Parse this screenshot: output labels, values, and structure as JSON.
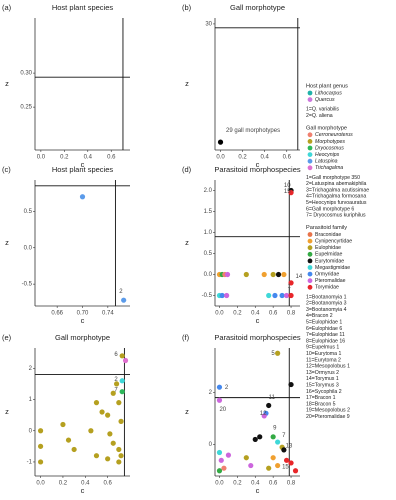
{
  "chart_data": [
    {
      "type": "scatter",
      "panel": "(a)",
      "title": "Host plant species",
      "x_label": "c",
      "y_label": "z",
      "xlim": [
        -0.05,
        0.76
      ],
      "ylim": [
        0.187,
        0.381
      ],
      "xticks": [
        {
          "value": 0,
          "label": "0.0"
        },
        {
          "value": 0.2,
          "label": "0.2"
        },
        {
          "value": 0.4,
          "label": "0.4"
        },
        {
          "value": 0.6,
          "label": "0.6"
        }
      ],
      "yticks": [
        {
          "value": 0.25,
          "label": "0.25"
        },
        {
          "value": 0.3,
          "label": "0.30"
        }
      ],
      "vline": 0.7,
      "hline": 0.294,
      "points": [],
      "point_labels": []
    },
    {
      "type": "scatter",
      "panel": "(b)",
      "title": "Gall morphotype",
      "x_label": "c",
      "y_label": "z",
      "xlim": [
        -0.05,
        0.72
      ],
      "ylim": [
        -2,
        31.5
      ],
      "xticks": [
        {
          "value": 0,
          "label": "0.0"
        },
        {
          "value": 0.2,
          "label": "0.2"
        },
        {
          "value": 0.4,
          "label": "0.4"
        },
        {
          "value": 0.6,
          "label": "0.6"
        }
      ],
      "yticks": [
        30
      ],
      "vline": 0.7,
      "hline": 29,
      "points": [
        {
          "x": 0,
          "y": 0,
          "color": "#000000"
        }
      ],
      "point_labels": [
        {
          "x": 0.05,
          "y": 3,
          "text": "29 gall morphotypes"
        }
      ]
    },
    {
      "type": "scatter",
      "panel": "(c)",
      "title": "Host plant species",
      "x_label": "c",
      "y_label": "z",
      "xlim": [
        0.625,
        0.775
      ],
      "ylim": [
        -0.8,
        0.93
      ],
      "xticks": [
        0.66,
        {
          "value": 0.7,
          "label": "0.70"
        },
        0.74
      ],
      "yticks": [
        -0.5,
        {
          "value": 0,
          "label": "0.0"
        },
        0.5
      ],
      "vline": 0.752,
      "hline": 0.85,
      "points": [
        {
          "x": 0.7,
          "y": 0.7,
          "color": "#5B9BEA"
        },
        {
          "x": 0.765,
          "y": -0.72,
          "color": "#5B9BEA"
        }
      ],
      "point_labels": [
        {
          "x": 0.758,
          "y": -0.6,
          "text": "2"
        }
      ]
    },
    {
      "type": "scatter",
      "panel": "(d)",
      "title": "Parasitoid morphospecies",
      "x_label": "c",
      "y_label": "z",
      "xlim": [
        -0.05,
        0.9
      ],
      "ylim": [
        -0.75,
        2.25
      ],
      "xticks": [
        {
          "value": 0,
          "label": "0.0"
        },
        0.2,
        0.4,
        0.6,
        0.8
      ],
      "yticks": [
        -0.5,
        {
          "value": 0,
          "label": "0.0"
        },
        0.5,
        {
          "value": 1,
          "label": "1.0"
        },
        1.5,
        {
          "value": 2,
          "label": "2.0"
        }
      ],
      "vline": 0.78,
      "hline": 0.9,
      "points": [
        {
          "x": 0.8,
          "y": 2.0,
          "color": "#111111"
        },
        {
          "x": 0.8,
          "y": 1.95,
          "color": "#E8262A"
        },
        {
          "x": 0,
          "y": 0,
          "color": "#F0A030"
        },
        {
          "x": 0.03,
          "y": 0,
          "color": "#33AA44"
        },
        {
          "x": 0.06,
          "y": 0,
          "color": "#F08070"
        },
        {
          "x": 0.09,
          "y": 0,
          "color": "#CC66DD"
        },
        {
          "x": 0.3,
          "y": 0,
          "color": "#B5A020"
        },
        {
          "x": 0.5,
          "y": 0,
          "color": "#F0A030"
        },
        {
          "x": 0.6,
          "y": 0,
          "color": "#B5A020"
        },
        {
          "x": 0.66,
          "y": 0,
          "color": "#111111"
        },
        {
          "x": 0.72,
          "y": 0,
          "color": "#F0A030"
        },
        {
          "x": 0.8,
          "y": -0.2,
          "color": "#E8262A"
        },
        {
          "x": 0,
          "y": -0.5,
          "color": "#3FD8D8"
        },
        {
          "x": 0.03,
          "y": -0.5,
          "color": "#4488EE"
        },
        {
          "x": 0.08,
          "y": -0.5,
          "color": "#CC66DD"
        },
        {
          "x": 0.55,
          "y": -0.5,
          "color": "#3FD8D8"
        },
        {
          "x": 0.62,
          "y": -0.5,
          "color": "#4488EE"
        },
        {
          "x": 0.7,
          "y": -0.5,
          "color": "#4488EE"
        },
        {
          "x": 0.75,
          "y": -0.5,
          "color": "#CC66DD"
        },
        {
          "x": 0.8,
          "y": -0.5,
          "color": "#E8262A"
        }
      ],
      "point_labels": [
        {
          "x": 0.72,
          "y": 2.12,
          "text": "10"
        },
        {
          "x": 0.72,
          "y": 1.98,
          "text": "15"
        },
        {
          "x": 0.85,
          "y": -0.05,
          "text": "14"
        },
        {
          "x": 0.76,
          "y": -0.28,
          "text": "1"
        }
      ]
    },
    {
      "type": "scatter",
      "panel": "(e)",
      "title": "Gall morphotype",
      "x_label": "c",
      "y_label": "z",
      "xlim": [
        -0.05,
        0.8
      ],
      "ylim": [
        -1.45,
        2.65
      ],
      "xticks": [
        {
          "value": 0,
          "label": "0.0"
        },
        {
          "value": 0.2,
          "label": "0.2"
        },
        {
          "value": 0.4,
          "label": "0.4"
        },
        {
          "value": 0.6,
          "label": "0.6"
        }
      ],
      "yticks": [
        -1,
        0,
        1,
        2
      ],
      "vline": 0.75,
      "hline": 1.8,
      "points": [
        {
          "x": 0,
          "y": 0,
          "color": "#B5A020"
        },
        {
          "x": 0,
          "y": -0.5,
          "color": "#B5A020"
        },
        {
          "x": 0,
          "y": -1,
          "color": "#B5A020"
        },
        {
          "x": 0.5,
          "y": 0.9,
          "color": "#B5A020"
        },
        {
          "x": 0.55,
          "y": 0.6,
          "color": "#B5A020"
        },
        {
          "x": 0.6,
          "y": 0.5,
          "color": "#B5A020"
        },
        {
          "x": 0.62,
          "y": -0.1,
          "color": "#B5A020"
        },
        {
          "x": 0.65,
          "y": -0.4,
          "color": "#B5A020"
        },
        {
          "x": 0.7,
          "y": -0.6,
          "color": "#B5A020"
        },
        {
          "x": 0.6,
          "y": -0.9,
          "color": "#B5A020"
        },
        {
          "x": 0.7,
          "y": -1,
          "color": "#B5A020"
        },
        {
          "x": 0.72,
          "y": -0.8,
          "color": "#B5A020"
        },
        {
          "x": 0.25,
          "y": -0.3,
          "color": "#B5A020"
        },
        {
          "x": 0.3,
          "y": -0.6,
          "color": "#B5A020"
        },
        {
          "x": 0.2,
          "y": 0.2,
          "color": "#B5A020"
        },
        {
          "x": 0.65,
          "y": 1.2,
          "color": "#B5A020"
        },
        {
          "x": 0.7,
          "y": 0.9,
          "color": "#B5A020"
        },
        {
          "x": 0.45,
          "y": 0,
          "color": "#B5A020"
        },
        {
          "x": 0.5,
          "y": -0.8,
          "color": "#B5A020"
        },
        {
          "x": 0.68,
          "y": 1.5,
          "color": "#B5A020"
        },
        {
          "x": 0.72,
          "y": 0.3,
          "color": "#B5A020"
        },
        {
          "x": 0.73,
          "y": 2.4,
          "color": "#B5A020"
        },
        {
          "x": 0.76,
          "y": 2.25,
          "color": "#E070D0"
        },
        {
          "x": 0.73,
          "y": 1.6,
          "color": "#3FD8D8"
        },
        {
          "x": 0.73,
          "y": 1.25,
          "color": "#2EB85A"
        }
      ],
      "point_labels": [
        {
          "x": 0.66,
          "y": 2.45,
          "text": "6"
        },
        {
          "x": 0.66,
          "y": 1.65,
          "text": "2"
        },
        {
          "x": 0.66,
          "y": 1.3,
          "text": "7"
        }
      ]
    },
    {
      "type": "scatter",
      "panel": "(f)",
      "title": "Parasitoid morphospecies",
      "x_label": "c",
      "y_label": "z",
      "xlim": [
        -0.05,
        0.9
      ],
      "ylim": [
        -1.2,
        3.7
      ],
      "xticks": [
        {
          "value": 0,
          "label": "0.0"
        },
        0.2,
        0.4,
        0.6,
        0.8
      ],
      "yticks": [
        0,
        2
      ],
      "vline": 0.78,
      "hline": 1.8,
      "points": [
        {
          "x": 0,
          "y": 2.2,
          "color": "#4488EE"
        },
        {
          "x": 0,
          "y": 1.7,
          "color": "#CC66DD"
        },
        {
          "x": 0.65,
          "y": 3.5,
          "color": "#B5A020"
        },
        {
          "x": 0.8,
          "y": 2.3,
          "color": "#111111"
        },
        {
          "x": 0.55,
          "y": 1.5,
          "color": "#111111"
        },
        {
          "x": 0.52,
          "y": 1.2,
          "color": "#4488EE"
        },
        {
          "x": 0.5,
          "y": 1.1,
          "color": "#CC66DD"
        },
        {
          "x": 0.45,
          "y": 0.3,
          "color": "#111111"
        },
        {
          "x": 0.4,
          "y": 0.2,
          "color": "#111111"
        },
        {
          "x": 0.6,
          "y": 0.3,
          "color": "#33AA44"
        },
        {
          "x": 0.65,
          "y": 0.1,
          "color": "#3FD8D8"
        },
        {
          "x": 0.7,
          "y": -0.1,
          "color": "#B5A020"
        },
        {
          "x": 0.72,
          "y": -0.2,
          "color": "#111111"
        },
        {
          "x": 0.75,
          "y": -0.6,
          "color": "#E8262A"
        },
        {
          "x": 0.8,
          "y": -0.7,
          "color": "#E8262A"
        },
        {
          "x": 0.85,
          "y": -1,
          "color": "#E8262A"
        },
        {
          "x": 0,
          "y": -0.3,
          "color": "#3FD8D8"
        },
        {
          "x": 0.02,
          "y": -0.6,
          "color": "#CC66DD"
        },
        {
          "x": 0.05,
          "y": -0.9,
          "color": "#F08070"
        },
        {
          "x": 0.1,
          "y": -0.4,
          "color": "#CC66DD"
        },
        {
          "x": 0.3,
          "y": -0.5,
          "color": "#B5A020"
        },
        {
          "x": 0.35,
          "y": -0.8,
          "color": "#CC66DD"
        },
        {
          "x": 0.6,
          "y": -0.5,
          "color": "#F0A030"
        },
        {
          "x": 0.65,
          "y": -0.8,
          "color": "#F0A030"
        },
        {
          "x": 0.55,
          "y": -0.9,
          "color": "#B5A020"
        },
        {
          "x": 0,
          "y": -1,
          "color": "#33AA44"
        }
      ],
      "point_labels": [
        {
          "x": 0.06,
          "y": 2.2,
          "text": "2"
        },
        {
          "x": 0.0,
          "y": 1.35,
          "text": "20"
        },
        {
          "x": 0.58,
          "y": 3.5,
          "text": "5"
        },
        {
          "x": 0.55,
          "y": 1.8,
          "text": "11"
        },
        {
          "x": 0.45,
          "y": 1.2,
          "text": "12"
        },
        {
          "x": 0.6,
          "y": 0.65,
          "text": "9"
        },
        {
          "x": 0.7,
          "y": 0.35,
          "text": "7"
        },
        {
          "x": 0.74,
          "y": -0.05,
          "text": "13"
        },
        {
          "x": 0.7,
          "y": -0.85,
          "text": "15"
        }
      ]
    }
  ],
  "legend": [
    {
      "title": "Host plant genus",
      "items": [
        {
          "label": "Lithocarpus",
          "color": "#20B2AA"
        },
        {
          "label": "Quercus",
          "color": "#CC77DD"
        }
      ],
      "notes": [
        "1=Q. variabilis",
        "2=Q. aliena"
      ]
    },
    {
      "title": "Gall morphotype",
      "items": [
        {
          "label": "Cerroneuroterus",
          "color": "#F08070"
        },
        {
          "label": "Morphotypes",
          "color": "#B5A020"
        },
        {
          "label": "Dryocosmus",
          "color": "#2EB85A"
        },
        {
          "label": "Heocynips",
          "color": "#3FD8D8"
        },
        {
          "label": "Latuspina",
          "color": "#5B9BEA"
        },
        {
          "label": "Trichagalma",
          "color": "#E070D0"
        }
      ],
      "notes": [
        "1=Gall morphotype 350",
        "2=Latuspina abemakiphila",
        "3=Trichagalma acutissimae",
        "4=Trichagalma formosana",
        "5=Heocynips furvoauratus",
        "6=Gall morphotype 6",
        "7= Dryocosmus kuriphilus"
      ]
    },
    {
      "title": "Parasitoid family",
      "items": [
        {
          "label": "Braconidae",
          "color": "#E8734A"
        },
        {
          "label": "Cynipencyrtidae",
          "color": "#F0A030"
        },
        {
          "label": "Eulophidae",
          "color": "#B5A020"
        },
        {
          "label": "Eupelmidae",
          "color": "#33AA44"
        },
        {
          "label": "Eurytomidae",
          "color": "#111111"
        },
        {
          "label": "Megastigmidae",
          "color": "#3FD8D8"
        },
        {
          "label": "Ormyridae",
          "color": "#4488EE"
        },
        {
          "label": "Pteromalidae",
          "color": "#CC66DD"
        },
        {
          "label": "Torymidae",
          "color": "#E8262A"
        }
      ],
      "notes": [
        "1=Bootanomyia 1",
        "2=Bootanomyia 3",
        "3=Bootanomyia 4",
        "4=Bracon 2",
        "5=Eulophidae 1",
        "6=Eulophidae 6",
        "7=Eulophidae 11",
        "8=Eulophidae 16",
        "9=Eupelmus 1",
        "10=Eurytoma 1",
        "11=Eurytoma 2",
        "12=Mesopolobus 1",
        "13=Ormyrus 2",
        "14=Torymus 1",
        "15=Torymus 3",
        "16=Sycophila 2",
        "17=Bracon 1",
        "18=Bracon 5",
        "19=Mesopolobus 2",
        "20=Pteromalidae 9"
      ]
    }
  ]
}
